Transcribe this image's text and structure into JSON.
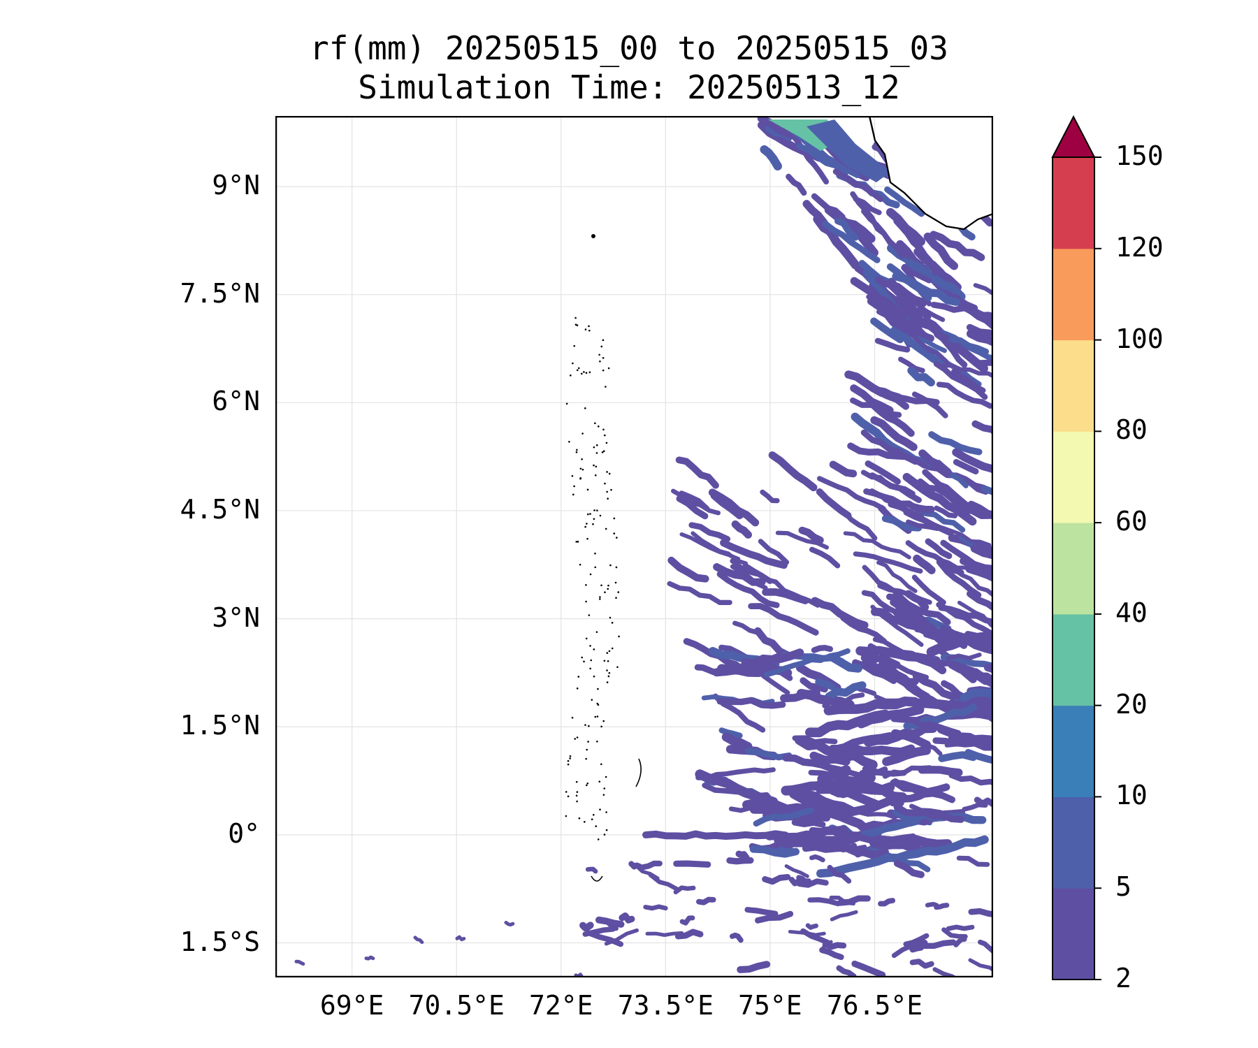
{
  "title": {
    "line1": "rf(mm) 20250515_00 to 20250515_03",
    "line2": "Simulation Time: 20250513_12"
  },
  "map": {
    "lon_range": [
      67.9,
      78.2
    ],
    "lat_range": [
      -1.98,
      9.98
    ],
    "x_ticks": [
      {
        "value": 69.0,
        "label": "69°E"
      },
      {
        "value": 70.5,
        "label": "70.5°E"
      },
      {
        "value": 72.0,
        "label": "72°E"
      },
      {
        "value": 73.5,
        "label": "73.5°E"
      },
      {
        "value": 75.0,
        "label": "75°E"
      },
      {
        "value": 76.5,
        "label": "76.5°E"
      }
    ],
    "y_ticks": [
      {
        "value": 9.0,
        "label": "9°N"
      },
      {
        "value": 7.5,
        "label": "7.5°N"
      },
      {
        "value": 6.0,
        "label": "6°N"
      },
      {
        "value": 4.5,
        "label": "4.5°N"
      },
      {
        "value": 3.0,
        "label": "3°N"
      },
      {
        "value": 1.5,
        "label": "1.5°N"
      },
      {
        "value": 0.0,
        "label": "0°"
      },
      {
        "value": -1.5,
        "label": "1.5°S"
      }
    ],
    "grid": true,
    "land_color": "#ffffff",
    "coastline_color": "#000000"
  },
  "colorbar": {
    "levels": [
      2,
      5,
      10,
      20,
      40,
      60,
      80,
      100,
      120,
      150
    ],
    "labels": [
      "2",
      "5",
      "10",
      "20",
      "40",
      "60",
      "80",
      "100",
      "120",
      "150"
    ],
    "colors": [
      "#5e4fa2",
      "#4f60ab",
      "#3a7fb8",
      "#66c2a5",
      "#bce4a0",
      "#f3f9b0",
      "#fcdd8c",
      "#f99b5b",
      "#d53e4f"
    ],
    "extend_color": "#9e0142",
    "extend": "max"
  }
}
